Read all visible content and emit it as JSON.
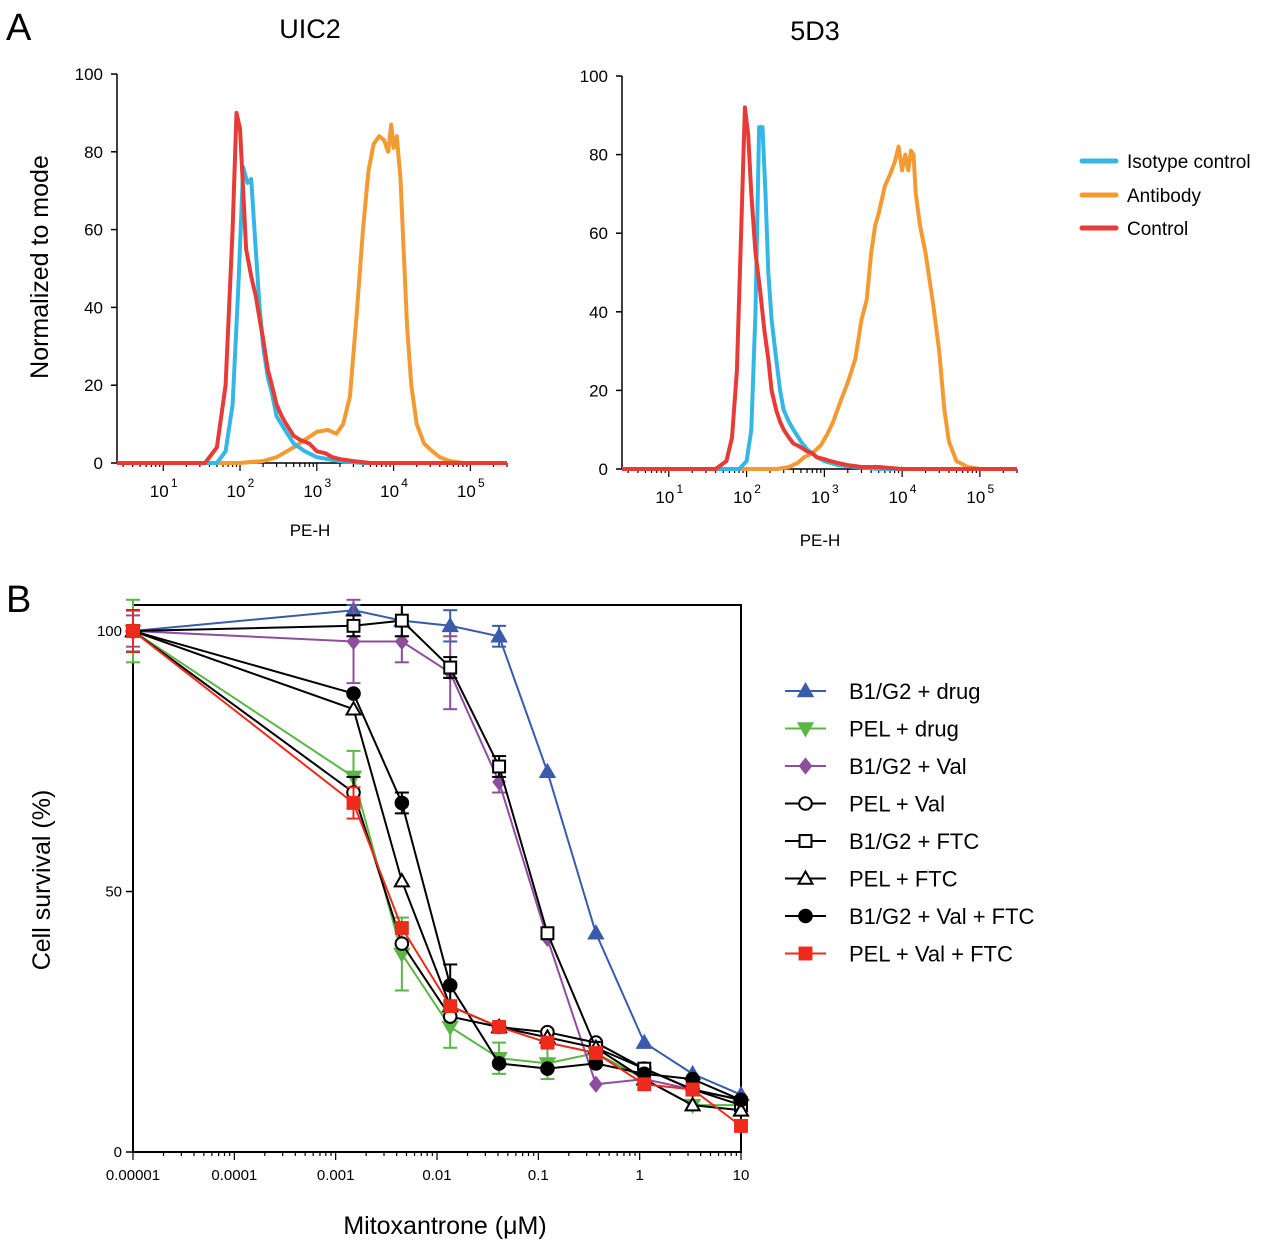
{
  "panel_labels": {
    "a": "A",
    "b": "B"
  },
  "chart_data": [
    {
      "type": "line",
      "title": "UIC2",
      "xlabel": "PE-H",
      "ylabel": "Normalized to mode",
      "xscale": "log",
      "xlim": [
        2.5,
        300000
      ],
      "ylim": [
        0,
        100
      ],
      "yticks": [
        0,
        20,
        40,
        60,
        80,
        100
      ],
      "xticks": [
        10,
        100,
        1000,
        10000,
        100000
      ],
      "xtick_labels": [
        "1",
        "2",
        "3",
        "4",
        "5"
      ],
      "grid": false,
      "series": [
        {
          "name": "Antibody",
          "color": "#f39a33",
          "x": [
            2.5,
            100,
            150,
            200,
            300,
            500,
            700,
            1000,
            1400,
            1800,
            2200,
            2700,
            3300,
            4000,
            4700,
            5500,
            6500,
            7500,
            8500,
            9300,
            10000,
            11000,
            12300,
            13500,
            15000,
            17000,
            20000,
            25000,
            32000,
            40000,
            55000,
            80000,
            300000
          ],
          "y": [
            0,
            0,
            0.3,
            0.5,
            1.5,
            4,
            6,
            8,
            8.5,
            7.5,
            10,
            17,
            38,
            60,
            75,
            82,
            84,
            83,
            80,
            87,
            81,
            84,
            73,
            55,
            35,
            20,
            10,
            5,
            3,
            1.5,
            0.5,
            0,
            0
          ]
        },
        {
          "name": "Isotype control",
          "color": "#34b7e5",
          "x": [
            2.5,
            50,
            65,
            80,
            95,
            110,
            125,
            140,
            160,
            180,
            200,
            230,
            260,
            300,
            400,
            500,
            700,
            1000,
            2000,
            4000,
            300000
          ],
          "y": [
            0,
            0,
            3,
            15,
            45,
            76,
            72,
            73,
            55,
            40,
            30,
            22,
            18,
            12,
            8,
            5,
            3,
            1.5,
            0.5,
            0,
            0
          ]
        },
        {
          "name": "Control",
          "color": "#e63b37",
          "x": [
            2.5,
            35,
            50,
            65,
            80,
            90,
            100,
            110,
            120,
            140,
            160,
            180,
            200,
            230,
            260,
            300,
            350,
            400,
            500,
            600,
            800,
            1000,
            1300,
            1600,
            2000,
            3000,
            5000,
            300000
          ],
          "y": [
            0,
            0,
            4,
            20,
            60,
            90,
            86,
            70,
            55,
            48,
            43,
            37,
            32,
            24,
            20,
            15,
            12,
            10,
            7,
            6,
            5,
            3,
            2.5,
            1.5,
            1,
            0.5,
            0,
            0
          ]
        }
      ]
    },
    {
      "type": "line",
      "title": "5D3",
      "xlabel": "PE-H",
      "ylabel": "",
      "xscale": "log",
      "xlim": [
        2.5,
        300000
      ],
      "ylim": [
        0,
        100
      ],
      "yticks": [
        0,
        20,
        40,
        60,
        80,
        100
      ],
      "xticks": [
        10,
        100,
        1000,
        10000,
        100000
      ],
      "xtick_labels": [
        "1",
        "2",
        "3",
        "4",
        "5"
      ],
      "grid": false,
      "series": [
        {
          "name": "Antibody",
          "color": "#f39a33",
          "x": [
            2.5,
            250,
            350,
            450,
            550,
            700,
            900,
            1100,
            1300,
            1600,
            2000,
            2500,
            3000,
            3500,
            4000,
            4500,
            5000,
            6000,
            7000,
            8000,
            9000,
            10000,
            11000,
            12000,
            13000,
            14000,
            15000,
            17000,
            20000,
            25000,
            30000,
            35000,
            40000,
            50000,
            70000,
            100000,
            300000
          ],
          "y": [
            0,
            0,
            0.5,
            1.5,
            3,
            4,
            6,
            9,
            12,
            17,
            22,
            28,
            38,
            43,
            55,
            62,
            65,
            72,
            75,
            78,
            82,
            76,
            80,
            76,
            81,
            80,
            70,
            62,
            55,
            42,
            30,
            15,
            7,
            2,
            0.5,
            0,
            0
          ]
        },
        {
          "name": "Isotype control",
          "color": "#34b7e5",
          "x": [
            2.5,
            80,
            100,
            115,
            130,
            145,
            160,
            175,
            190,
            210,
            240,
            270,
            300,
            350,
            400,
            500,
            600,
            800,
            1000,
            1500,
            2500,
            5000,
            300000
          ],
          "y": [
            0,
            0,
            2,
            10,
            40,
            87,
            87,
            70,
            50,
            38,
            28,
            20,
            15,
            12,
            10,
            7,
            5,
            3,
            2,
            1,
            0.5,
            0,
            0
          ]
        },
        {
          "name": "Control",
          "color": "#e63b37",
          "x": [
            2.5,
            40,
            55,
            65,
            75,
            85,
            95,
            105,
            115,
            130,
            150,
            170,
            190,
            210,
            240,
            270,
            300,
            350,
            400,
            450,
            500,
            600,
            700,
            800,
            1000,
            1200,
            1500,
            2000,
            3000,
            5000,
            10000,
            300000
          ],
          "y": [
            0,
            0,
            2,
            8,
            25,
            60,
            92,
            85,
            70,
            55,
            45,
            35,
            28,
            20,
            15,
            12,
            10,
            8,
            6.5,
            6,
            5.5,
            4.5,
            4,
            3,
            2.5,
            2,
            1.5,
            1,
            0.5,
            0.5,
            0,
            0
          ]
        }
      ]
    },
    {
      "type": "line",
      "title": "",
      "xlabel": "Mitoxantrone (μM)",
      "ylabel": "Cell survival (%)",
      "xscale": "log",
      "xlim": [
        1e-05,
        10
      ],
      "ylim": [
        0,
        105
      ],
      "yticks": [
        0,
        50,
        100
      ],
      "xticks": [
        1e-05,
        0.0001,
        0.001,
        0.01,
        0.1,
        1,
        10
      ],
      "xtick_labels": [
        "0.00001",
        "0.0001",
        "0.001",
        "0.01",
        "0.1",
        "1",
        "10"
      ],
      "x": [
        1e-05,
        0.0015,
        0.0045,
        0.0135,
        0.041,
        0.123,
        0.37,
        1.11,
        3.33,
        10
      ],
      "legend_position": "right",
      "grid": false,
      "series": [
        {
          "name": "B1/G2 + drug",
          "color": "#3a5bab",
          "marker": "triangle-up",
          "filled": true,
          "values": [
            100,
            104,
            102,
            101,
            99,
            73,
            42,
            21,
            15,
            11
          ],
          "errors": [
            4,
            1,
            3,
            3,
            2,
            0,
            0,
            0,
            0,
            0
          ]
        },
        {
          "name": "PEL + drug",
          "color": "#5ab645",
          "marker": "triangle-down",
          "filled": true,
          "values": [
            100,
            72,
            38,
            24,
            18,
            17,
            19,
            14,
            9,
            9
          ],
          "errors": [
            6,
            5,
            7,
            4,
            3,
            3,
            0,
            0,
            0,
            0
          ]
        },
        {
          "name": "B1/G2 + Val",
          "color": "#8e4e9f",
          "marker": "diamond",
          "filled": true,
          "values": [
            100,
            98,
            98,
            92,
            71,
            41,
            13,
            14,
            12,
            10
          ],
          "errors": [
            3,
            8,
            4,
            7,
            2,
            0,
            0,
            0,
            0,
            0
          ]
        },
        {
          "name": "PEL + Val",
          "color": "#000000",
          "marker": "circle",
          "filled": false,
          "values": [
            100,
            69,
            40,
            26,
            24,
            23,
            21,
            16,
            12,
            10
          ],
          "errors": [
            4,
            3,
            0,
            0,
            0,
            0,
            0,
            0,
            0,
            0
          ]
        },
        {
          "name": "B1/G2 + FTC",
          "color": "#000000",
          "marker": "square",
          "filled": false,
          "values": [
            100,
            101,
            102,
            93,
            74,
            42,
            20,
            16,
            12,
            9
          ],
          "errors": [
            4,
            2,
            3,
            2,
            2,
            0,
            0,
            0,
            0,
            0
          ]
        },
        {
          "name": "PEL + FTC",
          "color": "#000000",
          "marker": "triangle-up",
          "filled": false,
          "values": [
            100,
            85,
            52,
            28,
            24,
            22,
            20,
            14,
            9,
            8
          ],
          "errors": [
            4,
            0,
            0,
            0,
            0,
            0,
            0,
            0,
            0,
            0
          ]
        },
        {
          "name": "B1/G2 + Val + FTC",
          "color": "#000000",
          "marker": "circle",
          "filled": true,
          "values": [
            100,
            88,
            67,
            32,
            17,
            16,
            17,
            15,
            14,
            10
          ],
          "errors": [
            4,
            0,
            2,
            4,
            0,
            0,
            0,
            0,
            0,
            0
          ]
        },
        {
          "name": "PEL + Val + FTC",
          "color": "#ee2a1c",
          "marker": "square",
          "filled": true,
          "values": [
            100,
            67,
            43,
            28,
            24,
            21,
            19,
            13,
            12,
            5
          ],
          "errors": [
            4,
            3,
            0,
            0,
            0,
            0,
            0,
            0,
            0,
            0
          ]
        }
      ]
    }
  ]
}
